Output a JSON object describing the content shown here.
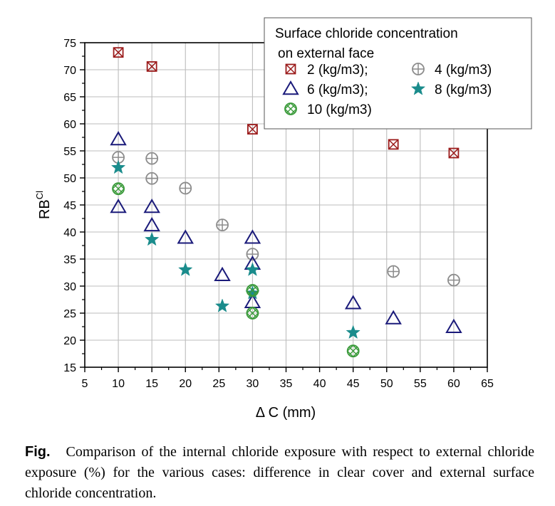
{
  "chart_data": {
    "type": "scatter",
    "xlabel": "Δ C (mm)",
    "ylabel": {
      "base": "RB",
      "sup": "Cl"
    },
    "xlim": [
      5,
      65
    ],
    "ylim": [
      15,
      75
    ],
    "xticks": [
      5,
      10,
      15,
      20,
      25,
      30,
      35,
      40,
      45,
      50,
      55,
      60,
      65
    ],
    "yticks": [
      15,
      20,
      25,
      30,
      35,
      40,
      45,
      50,
      55,
      60,
      65,
      70,
      75
    ],
    "grid": true,
    "legend": {
      "title_line1": "Surface chloride concentration",
      "title_line2": "on external face",
      "placement": "top-right"
    },
    "series": [
      {
        "name": "2  (kg/m3);",
        "marker": "square-x",
        "color": "#9b1b1b",
        "points": [
          [
            10,
            73.2
          ],
          [
            15,
            70.6
          ],
          [
            30,
            59.0
          ],
          [
            51,
            56.2
          ],
          [
            60,
            54.6
          ]
        ]
      },
      {
        "name": "4  (kg/m3)",
        "marker": "circle-plus",
        "color": "#8c8c8c",
        "points": [
          [
            10,
            53.8
          ],
          [
            15,
            53.6
          ],
          [
            15,
            49.9
          ],
          [
            20,
            48.1
          ],
          [
            25.5,
            41.3
          ],
          [
            30,
            35.9
          ],
          [
            51,
            32.7
          ],
          [
            60,
            31.1
          ]
        ]
      },
      {
        "name": "6  (kg/m3);",
        "marker": "triangle",
        "color": "#1a1a7a",
        "points": [
          [
            10,
            57.1
          ],
          [
            10,
            44.6
          ],
          [
            15,
            44.6
          ],
          [
            15,
            41.2
          ],
          [
            20,
            38.9
          ],
          [
            25.5,
            32.0
          ],
          [
            30,
            38.9
          ],
          [
            30,
            34.1
          ],
          [
            30,
            27.0
          ],
          [
            45,
            26.8
          ],
          [
            51,
            24.0
          ],
          [
            60,
            22.4
          ]
        ]
      },
      {
        "name": "8  (kg/m3)",
        "marker": "star",
        "color": "#1a8c8c",
        "points": [
          [
            10,
            51.9
          ],
          [
            15,
            38.6
          ],
          [
            20,
            33.0
          ],
          [
            25.5,
            26.3
          ],
          [
            30,
            33.0
          ],
          [
            30,
            28.7
          ],
          [
            45,
            21.4
          ]
        ]
      },
      {
        "name": "10 (kg/m3)",
        "marker": "circle-x",
        "color": "#3a9a3a",
        "points": [
          [
            10,
            48.0
          ],
          [
            30,
            29.2
          ],
          [
            30,
            25.0
          ],
          [
            45,
            18.0
          ]
        ]
      }
    ]
  },
  "caption": {
    "label": "Fig.",
    "text": "Comparison of the internal chloride exposure with respect to external chloride exposure (%) for the various cases: difference in clear cover and external surface chloride concentration."
  }
}
